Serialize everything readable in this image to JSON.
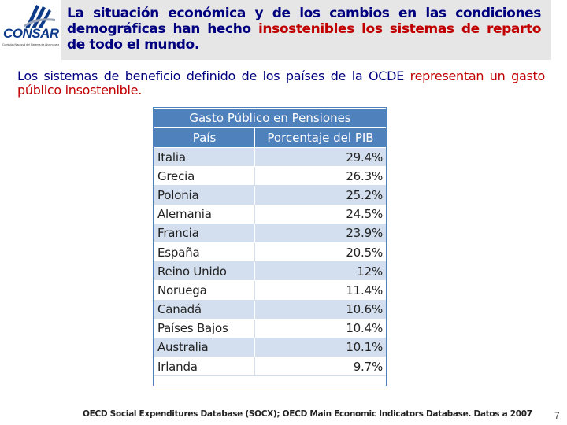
{
  "logo": {
    "name_part1": "CON",
    "name_part2": "SAR",
    "tagline": "Comisión Nacional del Sistema de Ahorro para el Retiro",
    "color": "#0d3b8a"
  },
  "header": {
    "title_part1": "La situación económica y de los cambios en las condiciones demográficas han hecho ",
    "title_highlight1": "insostenibles los sistemas de reparto",
    "title_part2": " de todo el mundo."
  },
  "subtitle": {
    "line1": "Los sistemas de beneficio definido de los países de la OCDE ",
    "line2_highlight": "representan un gasto público insostenible."
  },
  "table": {
    "caption": "Gasto Público en Pensiones",
    "col_country": "País",
    "col_percent": "Porcentaje del PIB",
    "rows": [
      {
        "country": "Italia",
        "percent": "29.4%"
      },
      {
        "country": "Grecia",
        "percent": "26.3%"
      },
      {
        "country": "Polonia",
        "percent": "25.2%"
      },
      {
        "country": "Alemania",
        "percent": "24.5%"
      },
      {
        "country": "Francia",
        "percent": "23.9%"
      },
      {
        "country": "España",
        "percent": "20.5%"
      },
      {
        "country": "Reino Unido",
        "percent": "12%"
      },
      {
        "country": "Noruega",
        "percent": "11.4%"
      },
      {
        "country": "Canadá",
        "percent": "10.6%"
      },
      {
        "country": "Países Bajos",
        "percent": "10.4%"
      },
      {
        "country": "Australia",
        "percent": "10.1%"
      },
      {
        "country": "Irlanda",
        "percent": "9.7%"
      }
    ],
    "header_color": "#4f81bd",
    "band_color": "#d3dfee"
  },
  "footer": {
    "source": "OECD Social Expenditures Database (SOCX); OECD Main Economic Indicators Database. Datos a 2007",
    "page_number": "7"
  }
}
